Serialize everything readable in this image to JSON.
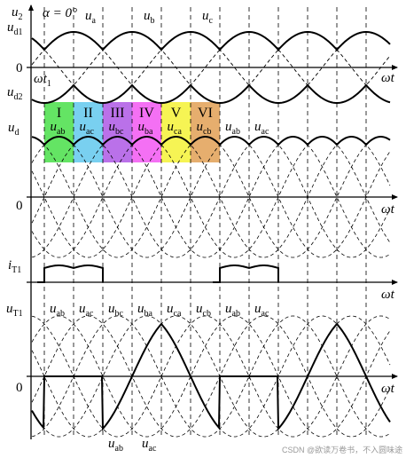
{
  "labels": {
    "u2": "u",
    "u2_sub": "2",
    "alpha": "α = 0°",
    "ud1": "u",
    "ud1_sub": "d1",
    "zero1": "0",
    "omega_t1": "ωt",
    "omega_t1_sub": "1",
    "ud2": "u",
    "ud2_sub": "d2",
    "ua": "u",
    "ua_sub": "a",
    "ub": "u",
    "ub_sub": "b",
    "uc": "u",
    "uc_sub": "c",
    "wt": "ωt",
    "ud": "u",
    "ud_sub": "d",
    "zero2": "0",
    "iT1": "i",
    "iT1_sub": "T1",
    "uT1": "u",
    "uT1_sub": "T1",
    "zero3": "0",
    "u": "u"
  },
  "intervals": [
    {
      "roman": "I",
      "sub": "ab",
      "color": "#4fe04f"
    },
    {
      "roman": "II",
      "sub": "ac",
      "color": "#67c9ee"
    },
    {
      "roman": "III",
      "sub": "bc",
      "color": "#b15de6"
    },
    {
      "roman": "IV",
      "sub": "ba",
      "color": "#f25cf2"
    },
    {
      "roman": "V",
      "sub": "ca",
      "color": "#f5f23c"
    },
    {
      "roman": "VI",
      "sub": "cb",
      "color": "#e3a35a"
    }
  ],
  "ud_extra": [
    {
      "sub": "ab"
    },
    {
      "sub": "ac"
    }
  ],
  "uT1_top": [
    {
      "sub": "ab"
    },
    {
      "sub": "ac"
    },
    {
      "sub": "bc"
    },
    {
      "sub": "ba"
    },
    {
      "sub": "ca"
    },
    {
      "sub": "cb"
    },
    {
      "sub": "ab"
    },
    {
      "sub": "ac"
    }
  ],
  "uT1_bottom": [
    {
      "sub": "ab"
    },
    {
      "sub": "ac"
    }
  ],
  "watermark": "CSDN @欲读万卷书，不入圆味途",
  "colors": {
    "line": "#000000",
    "dash": "#000000"
  }
}
